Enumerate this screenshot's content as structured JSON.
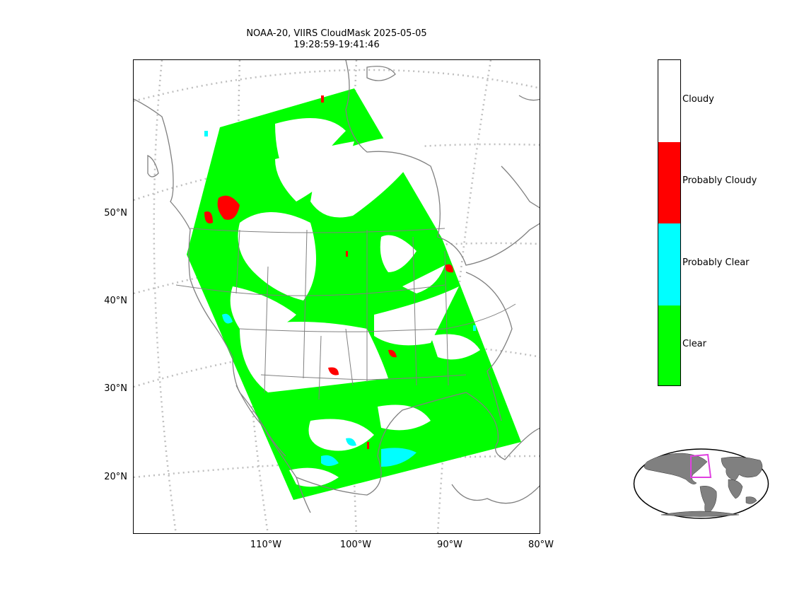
{
  "title": {
    "line1": "NOAA-20, VIIRS CloudMask 2025-05-05",
    "line2": "19:28:59-19:41:46"
  },
  "axes": {
    "lat_labels": [
      "50°N",
      "40°N",
      "30°N",
      "20°N"
    ],
    "lon_labels": [
      "110°W",
      "100°W",
      "90°W",
      "80°W"
    ]
  },
  "colorbar": {
    "categories": [
      {
        "label": "Cloudy",
        "color": "#ffffff"
      },
      {
        "label": "Probably Cloudy",
        "color": "#ff0000"
      },
      {
        "label": "Probably Clear",
        "color": "#00ffff"
      },
      {
        "label": "Clear",
        "color": "#00ff00"
      }
    ]
  },
  "colors": {
    "clear": "#00ff00",
    "probably_clear": "#00ffff",
    "probably_cloudy": "#ff0000",
    "cloudy": "#ffffff",
    "coastline": "#808080",
    "graticule": "#bfbfbf",
    "inset_land": "#808080",
    "inset_box": "#e040e0"
  }
}
